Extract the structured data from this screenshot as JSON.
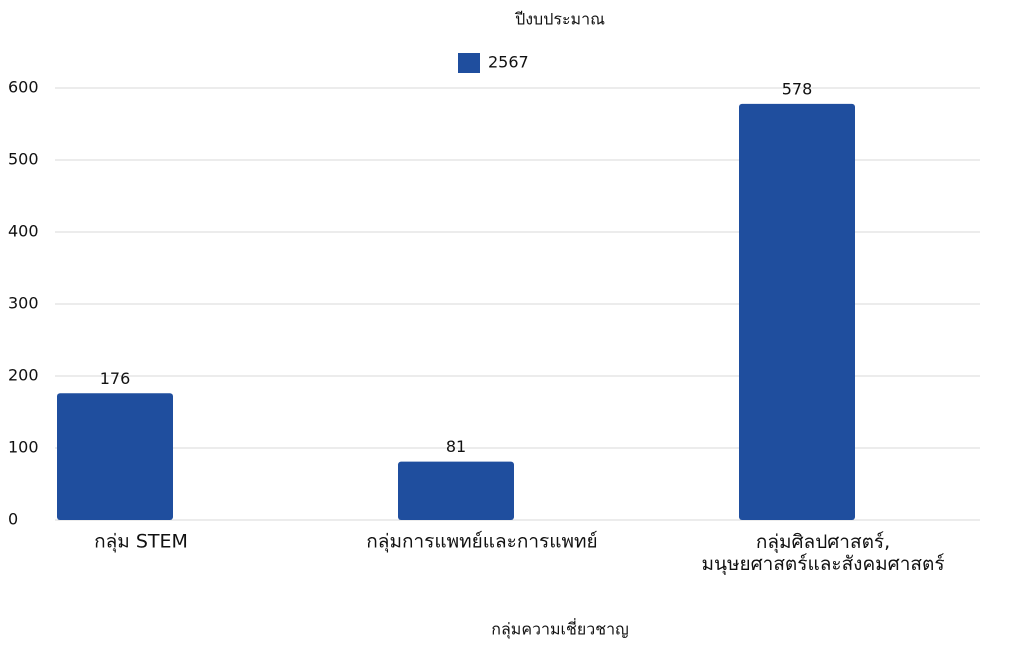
{
  "chart_data": {
    "type": "bar",
    "title": "ปีงบประมาณ",
    "x_label": "กลุ่มความเชี่ยวชาญ",
    "categories": [
      "กลุ่ม STEM",
      "กลุ่มการแพทย์และการแพทย์",
      "กลุ่มศิลปศาสตร์,\nมนุษยศาสตร์และสังคมศาสตร์"
    ],
    "series": [
      {
        "name": "2567",
        "color": "#1f4e9e",
        "values": [
          176,
          81,
          578
        ]
      }
    ],
    "ylim": [
      0,
      600
    ],
    "yticks": [
      0,
      100,
      200,
      300,
      400,
      500,
      600
    ],
    "grid": true,
    "legend": "top"
  }
}
